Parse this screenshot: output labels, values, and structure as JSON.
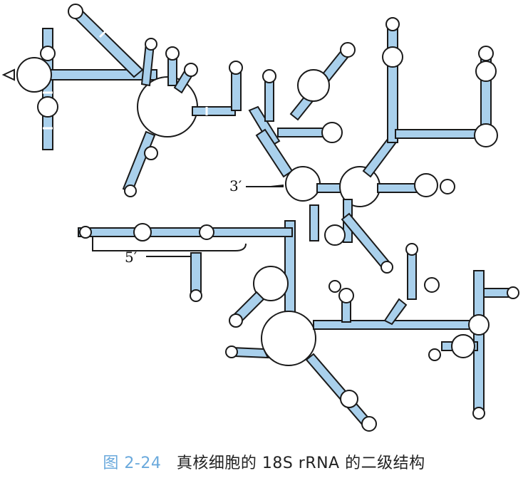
{
  "figure": {
    "number": "图 2-24",
    "title": "真核细胞的 18S rRNA 的二级结构"
  },
  "labels": {
    "three_prime": "3′",
    "five_prime": "5′"
  },
  "colors": {
    "stem_fill": "#a9d0ec",
    "outline": "#1a1a1a",
    "caption_number": "#6aa9dc",
    "caption_text": "#222222"
  }
}
